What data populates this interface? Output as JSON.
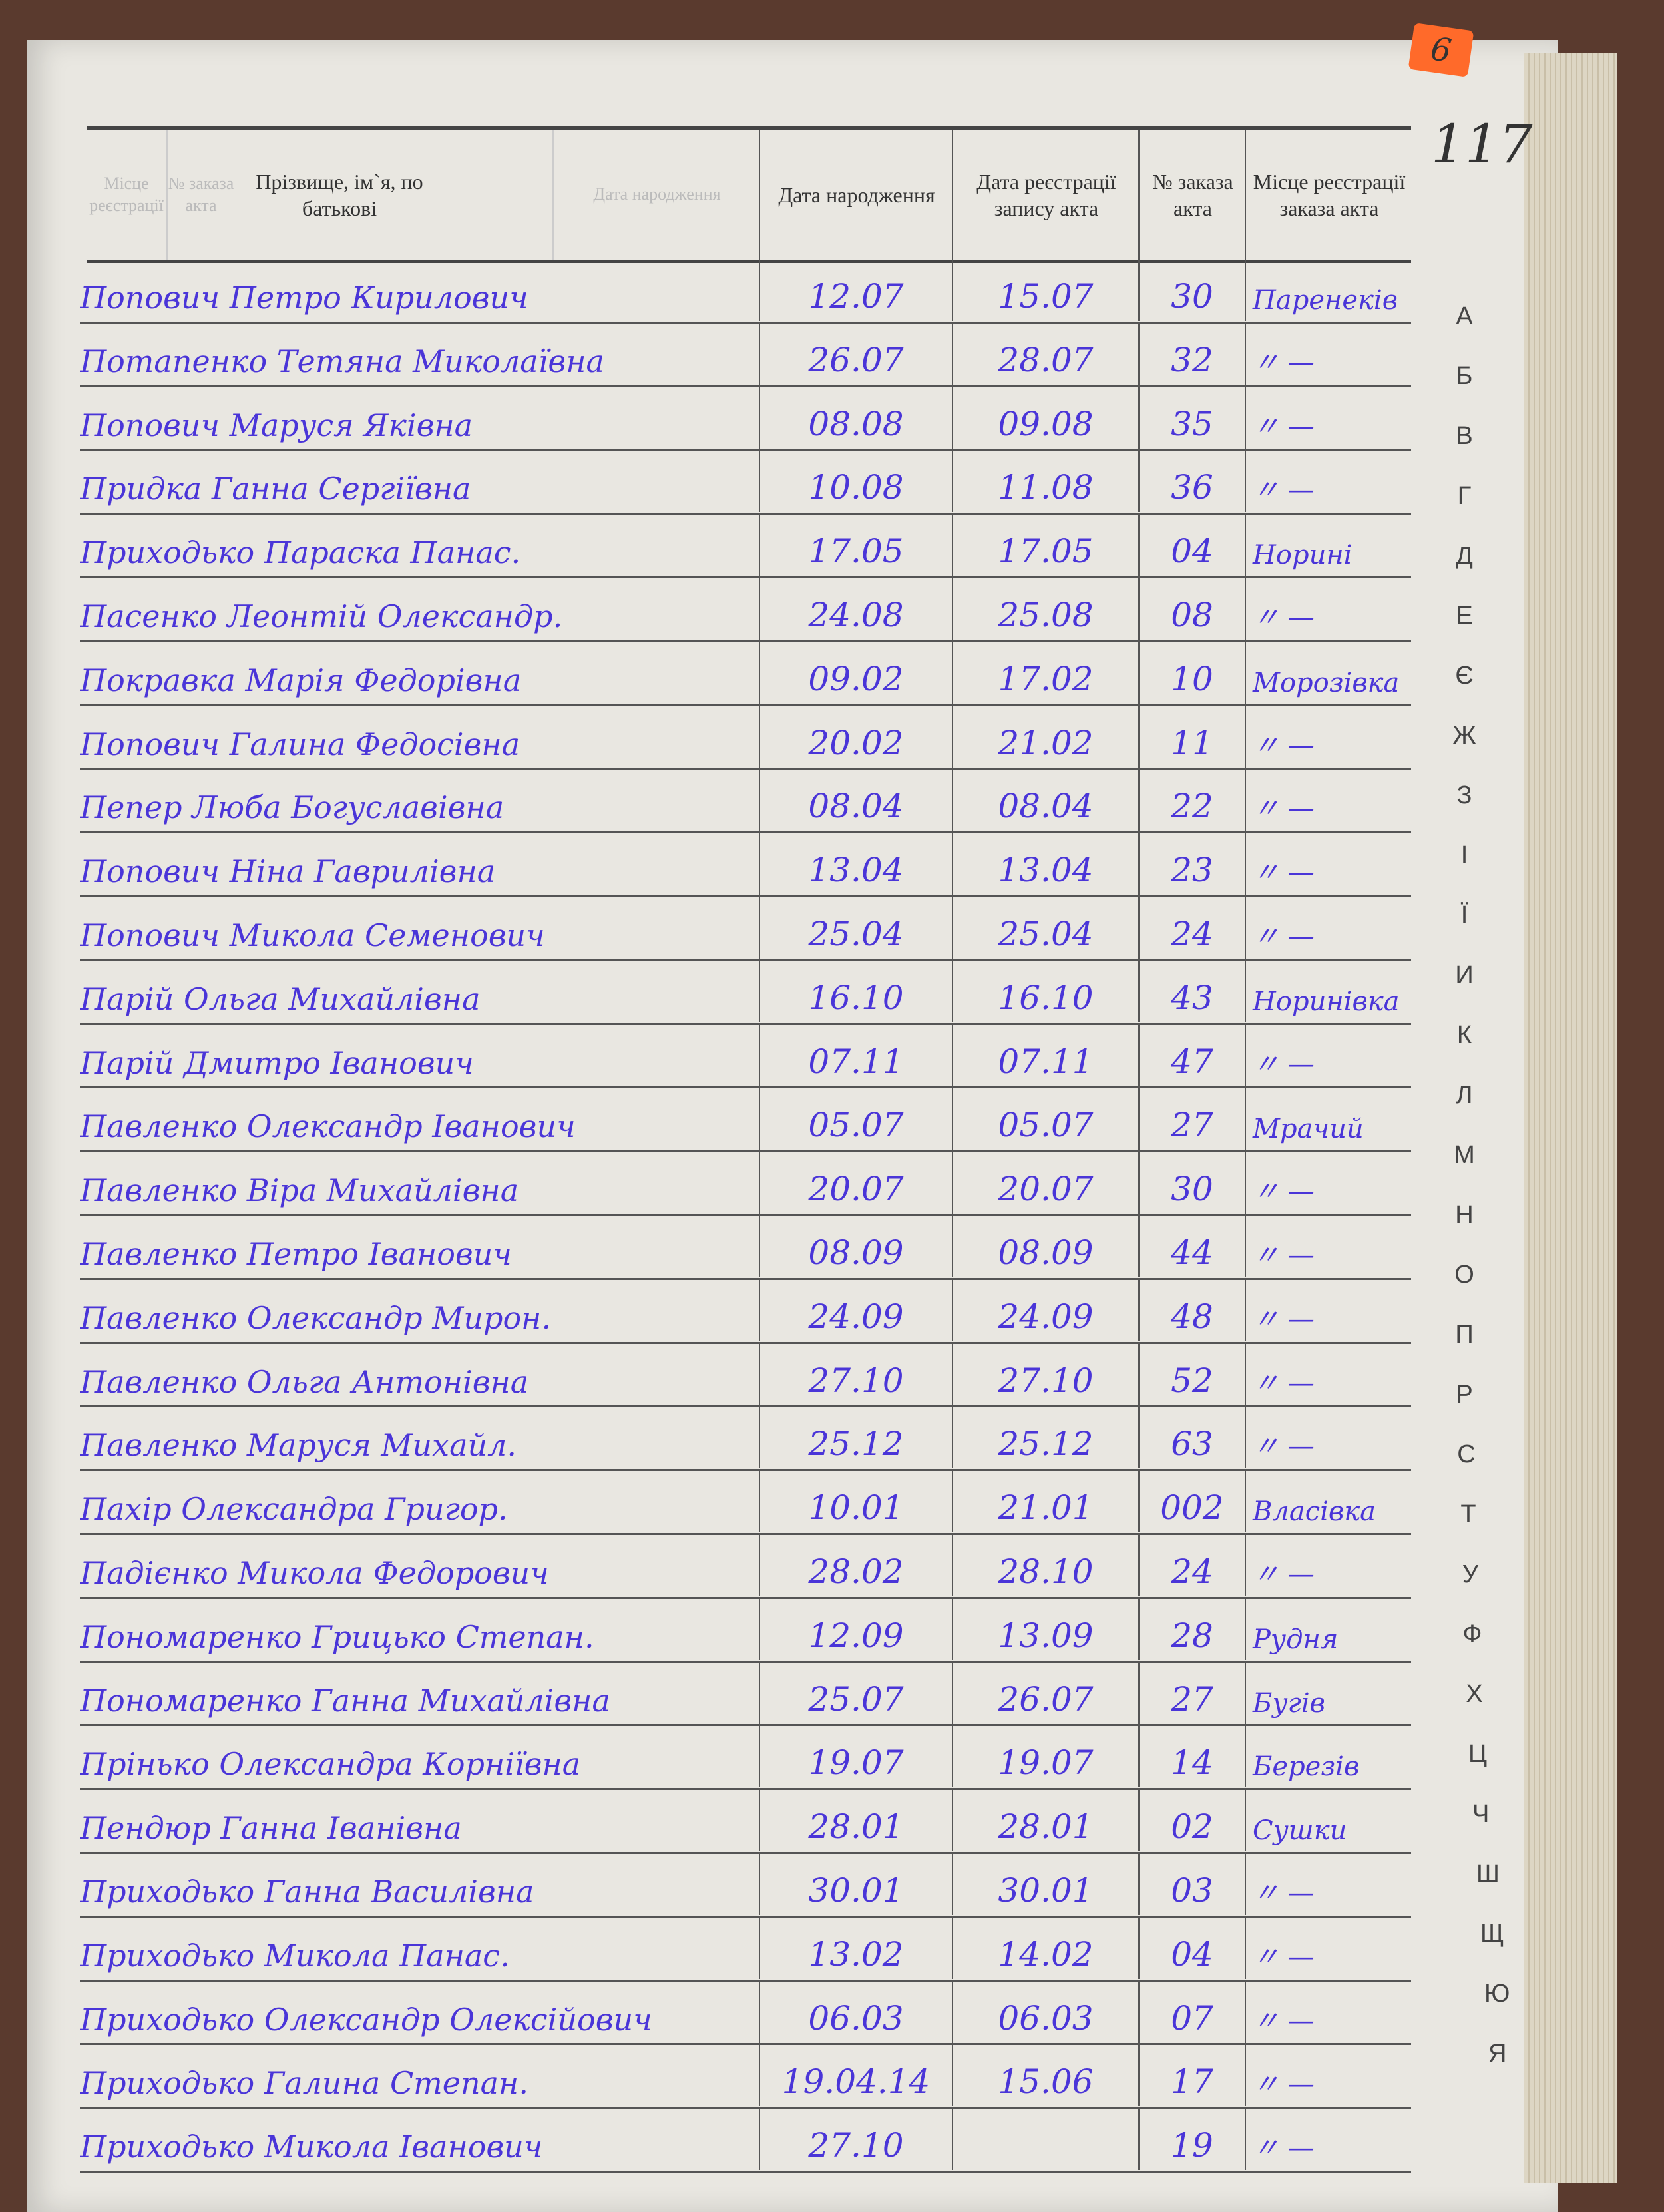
{
  "sticker": "6",
  "page_number": "117",
  "header": {
    "ghost_columns": [
      "Місце реєстрації",
      "№ заказа акта",
      "Дата народження"
    ],
    "columns": [
      "Прізвище, ім`я, по батькові",
      "Дата народження",
      "Дата реєстрації запису акта",
      "№ заказа акта",
      "Місце реєстрації заказа акта"
    ]
  },
  "rows": [
    {
      "name": "Попович Петро Кирилович",
      "birth": "12.07",
      "reg": "15.07",
      "num": "30",
      "place": "Паренеків"
    },
    {
      "name": "Потапенко Тетяна Миколаївна",
      "birth": "26.07",
      "reg": "28.07",
      "num": "32",
      "place": "〃 —"
    },
    {
      "name": "Попович Маруся Яківна",
      "birth": "08.08",
      "reg": "09.08",
      "num": "35",
      "place": "〃 —"
    },
    {
      "name": "Придка Ганна Сергіївна",
      "birth": "10.08",
      "reg": "11.08",
      "num": "36",
      "place": "〃 —"
    },
    {
      "name": "Приходько Параска Панас.",
      "birth": "17.05",
      "reg": "17.05",
      "num": "04",
      "place": "Норині"
    },
    {
      "name": "Пасенко Леонтій Олександр.",
      "birth": "24.08",
      "reg": "25.08",
      "num": "08",
      "place": "〃 —"
    },
    {
      "name": "Покравка Марія Федорівна",
      "birth": "09.02",
      "reg": "17.02",
      "num": "10",
      "place": "Морозівка"
    },
    {
      "name": "Попович Галина Федосівна",
      "birth": "20.02",
      "reg": "21.02",
      "num": "11",
      "place": "〃 —"
    },
    {
      "name": "Пепер Люба Богуславівна",
      "birth": "08.04",
      "reg": "08.04",
      "num": "22",
      "place": "〃 —"
    },
    {
      "name": "Попович Ніна Гаврилівна",
      "birth": "13.04",
      "reg": "13.04",
      "num": "23",
      "place": "〃 —"
    },
    {
      "name": "Попович Микола Семенович",
      "birth": "25.04",
      "reg": "25.04",
      "num": "24",
      "place": "〃 —"
    },
    {
      "name": "Парій Ольга Михайлівна",
      "birth": "16.10",
      "reg": "16.10",
      "num": "43",
      "place": "Норинівка"
    },
    {
      "name": "Парій Дмитро Іванович",
      "birth": "07.11",
      "reg": "07.11",
      "num": "47",
      "place": "〃 —"
    },
    {
      "name": "Павленко Олександр Іванович",
      "birth": "05.07",
      "reg": "05.07",
      "num": "27",
      "place": "Мрачий"
    },
    {
      "name": "Павленко Віра Михайлівна",
      "birth": "20.07",
      "reg": "20.07",
      "num": "30",
      "place": "〃 —"
    },
    {
      "name": "Павленко Петро Іванович",
      "birth": "08.09",
      "reg": "08.09",
      "num": "44",
      "place": "〃 —"
    },
    {
      "name": "Павленко Олександр Мирон.",
      "birth": "24.09",
      "reg": "24.09",
      "num": "48",
      "place": "〃 —"
    },
    {
      "name": "Павленко Ольга Антонівна",
      "birth": "27.10",
      "reg": "27.10",
      "num": "52",
      "place": "〃 —"
    },
    {
      "name": "Павленко Маруся Михайл.",
      "birth": "25.12",
      "reg": "25.12",
      "num": "63",
      "place": "〃 —"
    },
    {
      "name": "Пахір Олександра Григор.",
      "birth": "10.01",
      "reg": "21.01",
      "num": "002",
      "place": "Власівка"
    },
    {
      "name": "Падієнко Микола Федорович",
      "birth": "28.02",
      "reg": "28.10",
      "num": "24",
      "place": "〃 —"
    },
    {
      "name": "Пономаренко Грицько Степан.",
      "birth": "12.09",
      "reg": "13.09",
      "num": "28",
      "place": "Рудня"
    },
    {
      "name": "Пономаренко Ганна Михайлівна",
      "birth": "25.07",
      "reg": "26.07",
      "num": "27",
      "place": "Бугів"
    },
    {
      "name": "Прінько Олександра Корніївна",
      "birth": "19.07",
      "reg": "19.07",
      "num": "14",
      "place": "Березів"
    },
    {
      "name": "Пендюр Ганна Іванівна",
      "birth": "28.01",
      "reg": "28.01",
      "num": "02",
      "place": "Сушки"
    },
    {
      "name": "Приходько Ганна Василівна",
      "birth": "30.01",
      "reg": "30.01",
      "num": "03",
      "place": "〃 —"
    },
    {
      "name": "Приходько Микола Панас.",
      "birth": "13.02",
      "reg": "14.02",
      "num": "04",
      "place": "〃 —"
    },
    {
      "name": "Приходько Олександр Олексійович",
      "birth": "06.03",
      "reg": "06.03",
      "num": "07",
      "place": "〃 —"
    },
    {
      "name": "Приходько Галина Степан.",
      "birth": "19.04.14",
      "reg": "15.06",
      "num": "17",
      "place": "〃 —"
    },
    {
      "name": "Приходько Микола Іванович",
      "birth": "27.10",
      "reg": "",
      "num": "19",
      "place": "〃 —"
    }
  ],
  "alphabet_tabs": [
    "А",
    "Б",
    "В",
    "Г",
    "Д",
    "Е",
    "Є",
    "Ж",
    "З",
    "І",
    "Ї",
    "И",
    "К",
    "Л",
    "М",
    "Н",
    "О",
    "П",
    "Р",
    "С",
    "Т",
    "У",
    "Ф",
    "Х",
    "Ц",
    "Ч",
    "Ш",
    "Щ",
    "Ю",
    "Я"
  ],
  "colors": {
    "ink": "#4a35d8",
    "paper": "#e9e7e1",
    "sticker": "#ff6a2a"
  }
}
